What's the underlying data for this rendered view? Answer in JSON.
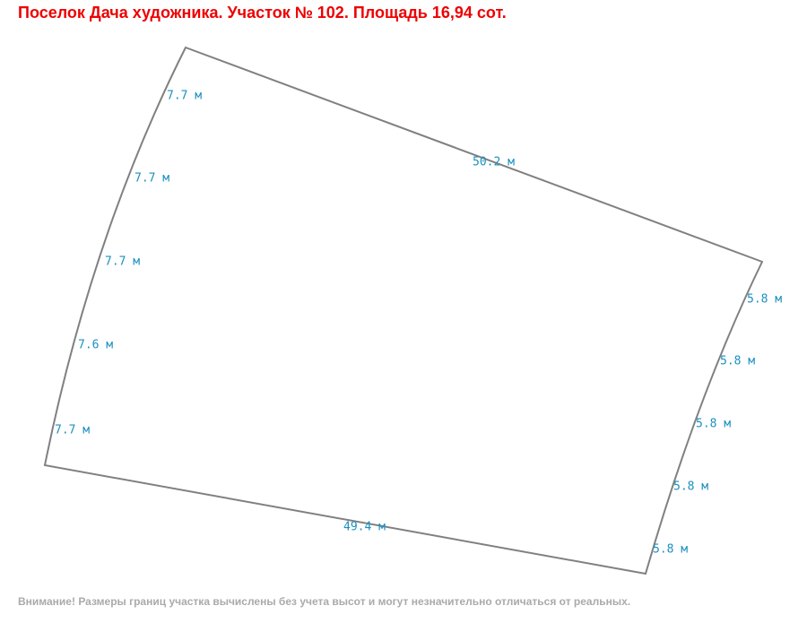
{
  "header": {
    "title": "Поселок Дача художника. Участок № 102. Площадь 16,94 сот."
  },
  "plot": {
    "top_edge": "50.2 м",
    "bottom_edge": "49.4 м",
    "left_edge": [
      "7.7 м",
      "7.7 м",
      "7.7 м",
      "7.6 м",
      "7.7 м"
    ],
    "right_edge": [
      "5.8 м",
      "5.8 м",
      "5.8 м",
      "5.8 м",
      "5.8 м"
    ]
  },
  "footer": {
    "note": "Внимание! Размеры границ участка вычислены без учета высот и могут незначительно отличаться от реальных."
  }
}
